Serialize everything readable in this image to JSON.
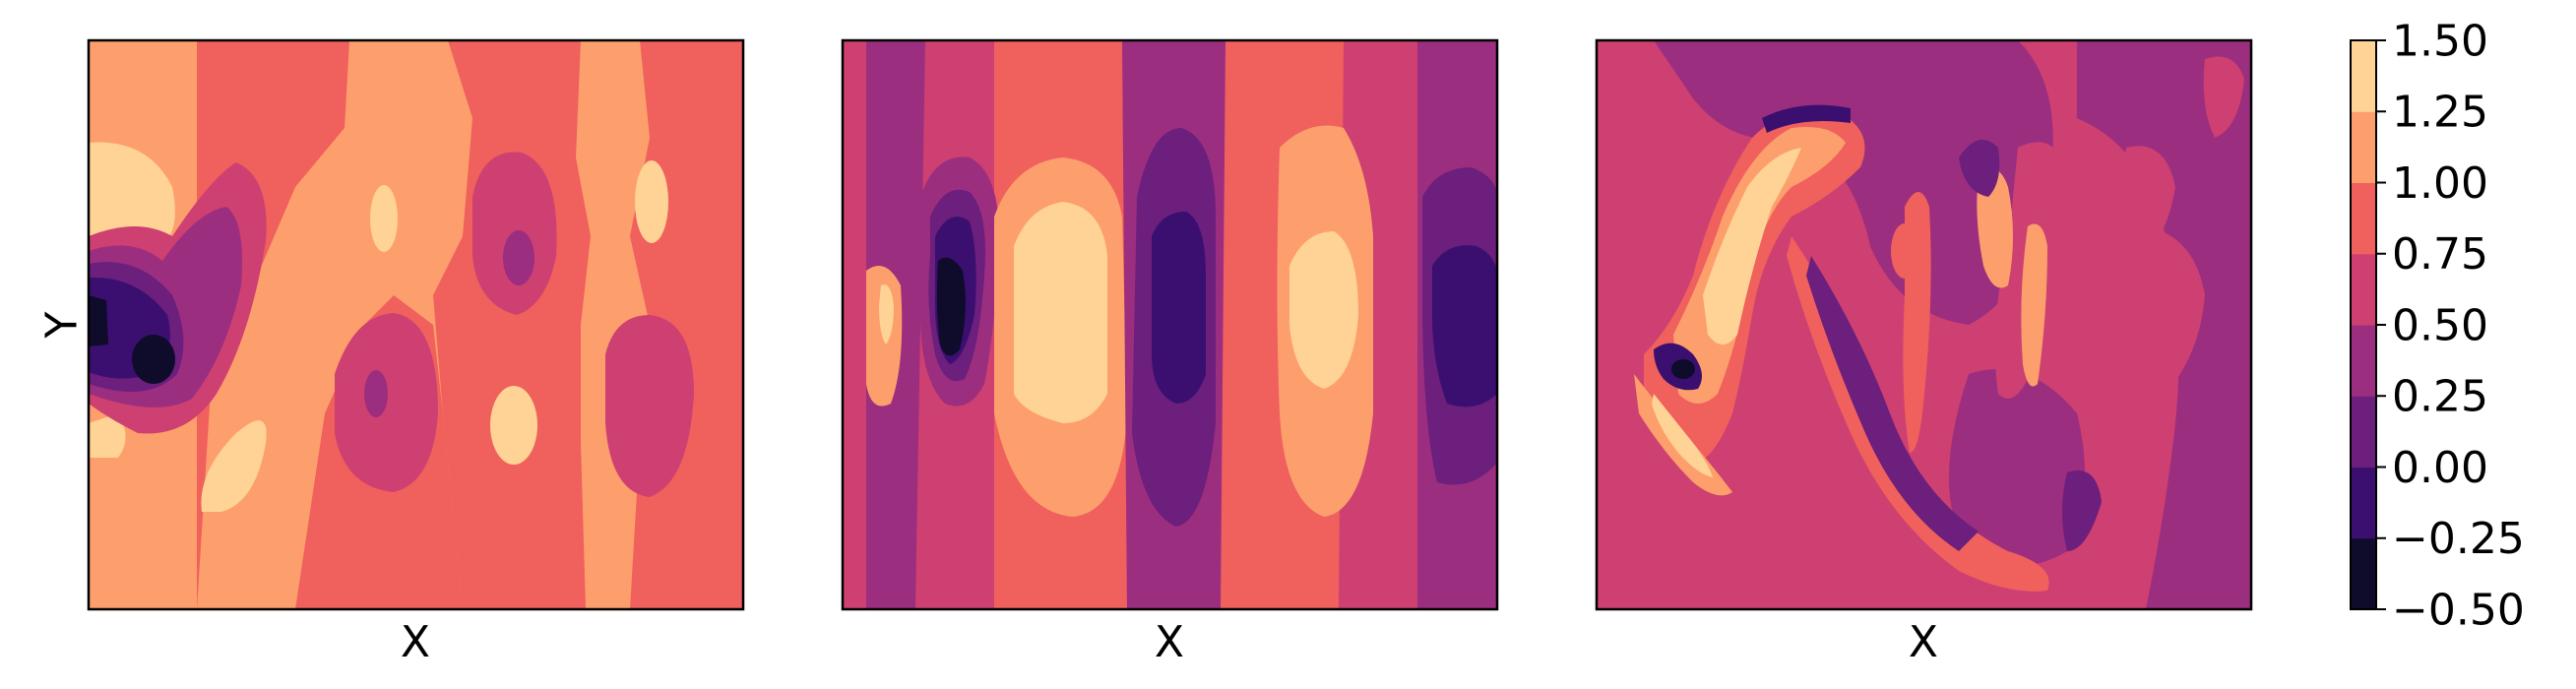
{
  "chart_data": {
    "type": "heatmap",
    "style": "filled-contour",
    "colormap": "magma",
    "panels": [
      {
        "xlabel": "X",
        "ylabel": "Y",
        "show_ticks": false
      },
      {
        "xlabel": "X",
        "ylabel": "",
        "show_ticks": false
      },
      {
        "xlabel": "X",
        "ylabel": "",
        "show_ticks": false
      }
    ],
    "colorbar": {
      "levels": [
        -0.5,
        -0.25,
        0.0,
        0.25,
        0.5,
        0.75,
        1.0,
        1.25,
        1.5
      ],
      "tick_labels": [
        "−0.50",
        "−0.25",
        "0.00",
        "0.25",
        "0.50",
        "0.75",
        "1.00",
        "1.25",
        "1.50"
      ],
      "colors": [
        "#0f0b2a",
        "#3b0f70",
        "#6c1f7c",
        "#9c2e7f",
        "#cd4071",
        "#f0605d",
        "#fd9f6c",
        "#fed395"
      ]
    }
  }
}
